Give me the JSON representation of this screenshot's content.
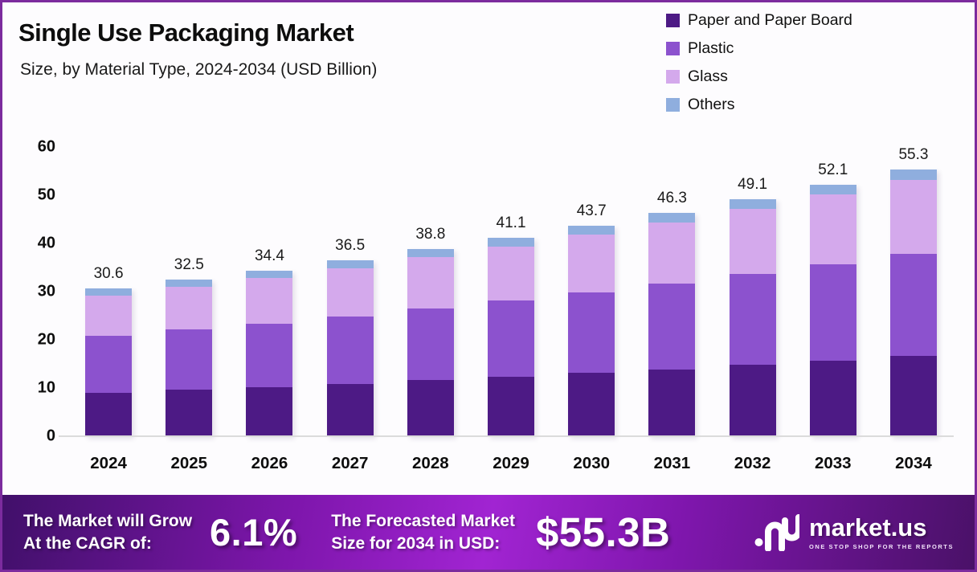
{
  "header": {
    "title": "Single Use Packaging Market",
    "subtitle": "Size, by Material Type, 2024-2034 (USD Billion)"
  },
  "legend": [
    {
      "label": "Paper and Paper Board",
      "color": "#4D1A85"
    },
    {
      "label": "Plastic",
      "color": "#8C52CE"
    },
    {
      "label": "Glass",
      "color": "#D4A9EC"
    },
    {
      "label": "Others",
      "color": "#8FAEDE"
    }
  ],
  "chart_data": {
    "type": "bar",
    "stacked": true,
    "title": "Single Use Packaging Market Size, by Material Type, 2024-2034 (USD Billion)",
    "categories": [
      "2024",
      "2025",
      "2026",
      "2027",
      "2028",
      "2029",
      "2030",
      "2031",
      "2032",
      "2033",
      "2034"
    ],
    "series": [
      {
        "name": "Paper and Paper Board",
        "color": "#4D1A85",
        "values": [
          9.0,
          9.6,
          10.2,
          10.9,
          11.6,
          12.3,
          13.1,
          13.9,
          14.8,
          15.7,
          16.7
        ]
      },
      {
        "name": "Plastic",
        "color": "#8C52CE",
        "values": [
          11.8,
          12.5,
          13.2,
          14.0,
          14.9,
          15.8,
          16.8,
          17.8,
          18.9,
          20.0,
          21.2
        ]
      },
      {
        "name": "Glass",
        "color": "#D4A9EC",
        "values": [
          8.4,
          8.9,
          9.5,
          10.0,
          10.6,
          11.3,
          12.0,
          12.7,
          13.5,
          14.4,
          15.3
        ]
      },
      {
        "name": "Others",
        "color": "#8FAEDE",
        "values": [
          1.4,
          1.5,
          1.5,
          1.6,
          1.7,
          1.7,
          1.8,
          1.9,
          1.9,
          2.0,
          2.1
        ]
      }
    ],
    "totals": [
      30.6,
      32.5,
      34.4,
      36.5,
      38.8,
      41.1,
      43.7,
      46.3,
      49.1,
      52.1,
      55.3
    ],
    "xlabel": "",
    "ylabel": "",
    "ylim": [
      0,
      60
    ],
    "yticks": [
      0,
      10,
      20,
      30,
      40,
      50,
      60
    ],
    "grid": false,
    "legend_position": "top-right"
  },
  "footer": {
    "growth_label_line1": "The Market will Grow",
    "growth_label_line2": "At the CAGR of:",
    "cagr_value": "6.1%",
    "forecast_label_line1": "The Forecasted Market",
    "forecast_label_line2": "Size for 2034 in USD:",
    "forecast_value": "$55.3B",
    "brand": {
      "name": "market.us",
      "tagline": "ONE STOP SHOP FOR THE REPORTS"
    }
  }
}
